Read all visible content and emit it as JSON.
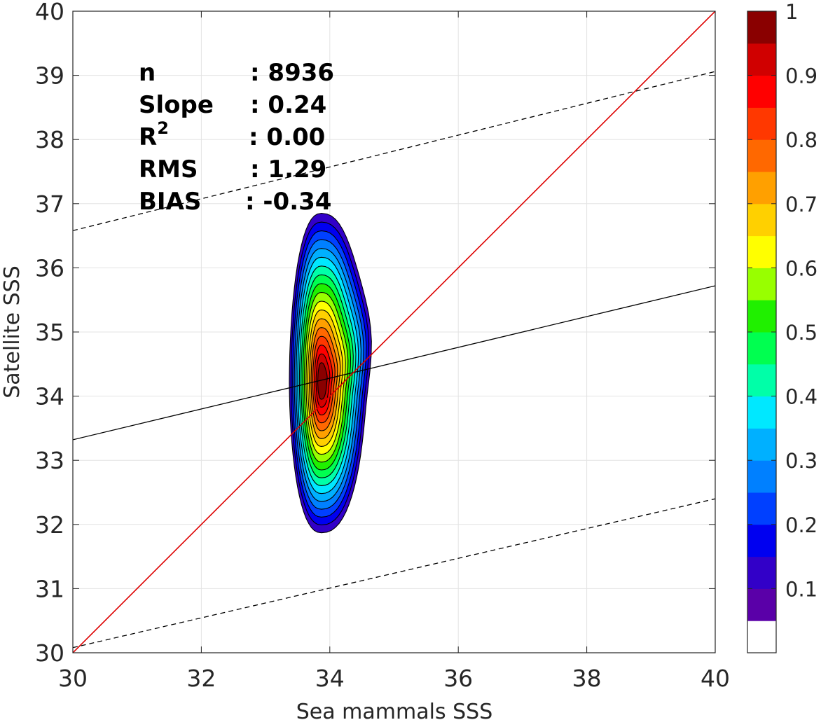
{
  "chart_data": {
    "type": "contour-scatter",
    "xlabel": "Sea mammals  SSS",
    "ylabel": "Satellite SSS",
    "xlim": [
      30,
      40
    ],
    "ylim": [
      30,
      40
    ],
    "x_ticks": [
      "30",
      "32",
      "34",
      "36",
      "38",
      "40"
    ],
    "y_ticks": [
      "30",
      "31",
      "32",
      "33",
      "34",
      "35",
      "36",
      "37",
      "38",
      "39",
      "40"
    ],
    "grid": true,
    "stats": [
      {
        "key": "n",
        "sup": "",
        "value": ": 8936"
      },
      {
        "key": "Slope",
        "sup": "",
        "value": ": 0.24"
      },
      {
        "key": "R",
        "sup": "2",
        "value": ": 0.00"
      },
      {
        "key": "RMS",
        "sup": "",
        "value": ": 1.29"
      },
      {
        "key": "BIAS",
        "sup": "",
        "value": ": -0.34"
      }
    ],
    "lines": {
      "one_to_one": {
        "from": [
          30,
          30
        ],
        "to": [
          40,
          40
        ],
        "color": "#dd0000"
      },
      "regression": {
        "from": [
          30,
          33.32
        ],
        "to": [
          40,
          35.72
        ],
        "color": "#000000"
      },
      "upper_bound": {
        "from": [
          30,
          36.58
        ],
        "to": [
          40,
          39.06
        ],
        "color": "#000000",
        "dash": true
      },
      "lower_bound": {
        "from": [
          30,
          30.08
        ],
        "to": [
          40,
          32.4
        ],
        "color": "#000000",
        "dash": true
      }
    },
    "density_contours": {
      "center": [
        33.87,
        34.22
      ],
      "outer_extent": {
        "x": [
          33.37,
          34.56
        ],
        "y": [
          31.87,
          36.85
        ]
      },
      "levels": [
        0.05,
        0.15,
        0.2,
        0.25,
        0.3,
        0.35,
        0.4,
        0.45,
        0.5,
        0.55,
        0.6,
        0.65,
        0.7,
        0.75,
        0.8,
        0.85,
        0.9,
        0.95
      ]
    },
    "colorbar": {
      "range": [
        0,
        1
      ],
      "tick_labels": [
        "0.1",
        "0.2",
        "0.3",
        "0.4",
        "0.5",
        "0.6",
        "0.7",
        "0.8",
        "0.9",
        "1"
      ],
      "tick_values": [
        0.1,
        0.2,
        0.3,
        0.4,
        0.5,
        0.6,
        0.7,
        0.8,
        0.9,
        1.0
      ],
      "colors": [
        "#ffffff",
        "#5a00a8",
        "#3200c8",
        "#0000f0",
        "#0040ff",
        "#0080ff",
        "#00b0ff",
        "#00e8ff",
        "#00ffa8",
        "#00ff50",
        "#20f000",
        "#98ff00",
        "#ffff00",
        "#ffd000",
        "#ffa000",
        "#ff6800",
        "#ff3800",
        "#ff0000",
        "#d00000",
        "#8a0000"
      ]
    }
  }
}
